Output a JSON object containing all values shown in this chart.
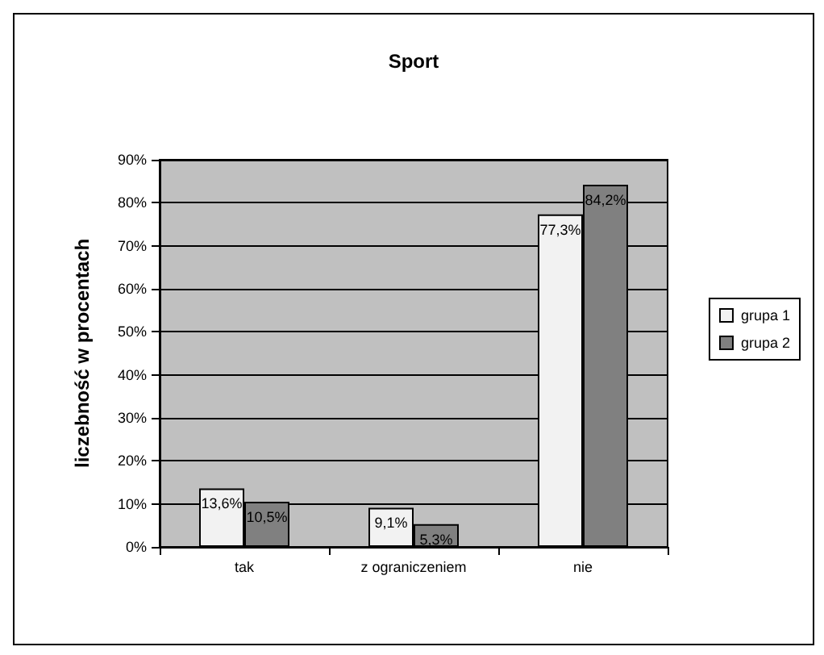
{
  "chart_data": {
    "type": "bar",
    "title": "Sport",
    "ylabel": "liczebność w procentach",
    "categories": [
      "tak",
      "z ograniczeniem",
      "nie"
    ],
    "series": [
      {
        "name": "grupa 1",
        "color": "#f2f2f2",
        "values": [
          13.6,
          9.1,
          77.3
        ],
        "value_labels": [
          "13,6%",
          "9,1%",
          "77,3%"
        ]
      },
      {
        "name": "grupa 2",
        "color": "#808080",
        "values": [
          10.5,
          5.3,
          84.2
        ],
        "value_labels": [
          "10,5%",
          "5,3%",
          "84,2%"
        ]
      }
    ],
    "ylim": [
      0,
      90
    ],
    "yticks": [
      {
        "value": 0,
        "label": "0%"
      },
      {
        "value": 10,
        "label": "10%"
      },
      {
        "value": 20,
        "label": "20%"
      },
      {
        "value": 30,
        "label": "30%"
      },
      {
        "value": 40,
        "label": "40%"
      },
      {
        "value": 50,
        "label": "50%"
      },
      {
        "value": 60,
        "label": "60%"
      },
      {
        "value": 70,
        "label": "70%"
      },
      {
        "value": 80,
        "label": "80%"
      },
      {
        "value": 90,
        "label": "90%"
      }
    ],
    "grid": "y",
    "legend": "right"
  }
}
